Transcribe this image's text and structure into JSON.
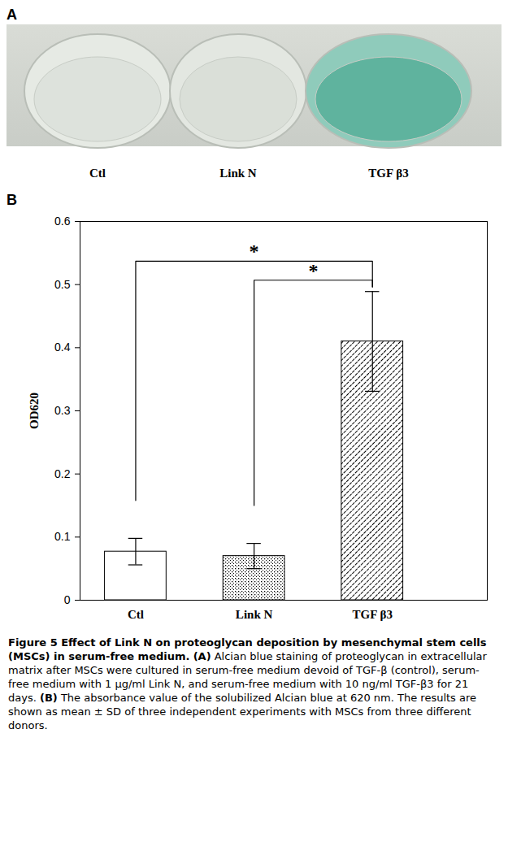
{
  "panel_a": {
    "letter": "A",
    "labels": [
      "Ctl",
      "Link N",
      "TGF β3"
    ]
  },
  "chart_data": {
    "type": "bar",
    "panel_label": "B",
    "categories": [
      "Ctl",
      "Link N",
      "TGF β3"
    ],
    "values": [
      0.077,
      0.07,
      0.41
    ],
    "errors": [
      0.021,
      0.02,
      0.079
    ],
    "ylabel": "OD620",
    "ylim": [
      0,
      0.6
    ],
    "yticks": [
      0,
      0.1,
      0.2,
      0.3,
      0.4,
      0.5,
      0.6
    ],
    "grid": false,
    "color": "#000000",
    "annotations": [
      {
        "text": "*",
        "from": "Ctl",
        "to": "TGF β3"
      },
      {
        "text": "*",
        "from": "Link N",
        "to": "TGF β3"
      }
    ]
  },
  "caption": {
    "title": "Figure 5 Effect of Link N on proteoglycan deposition by mesenchymal stem cells (MSCs) in serum-free medium.",
    "parts": [
      {
        "label": "(A)",
        "text": "Alcian blue staining of proteoglycan in extracellular matrix after MSCs were cultured in serum-free medium devoid of TGF-β (control), serum-free medium with 1 µg/ml Link N, and serum-free medium with 10 ng/ml TGF-β3 for 21 days."
      },
      {
        "label": "(B)",
        "text": "The absorbance value of the solubilized Alcian blue at 620 nm. The results are shown as mean ± SD of three independent experiments with MSCs from three different donors."
      }
    ]
  }
}
